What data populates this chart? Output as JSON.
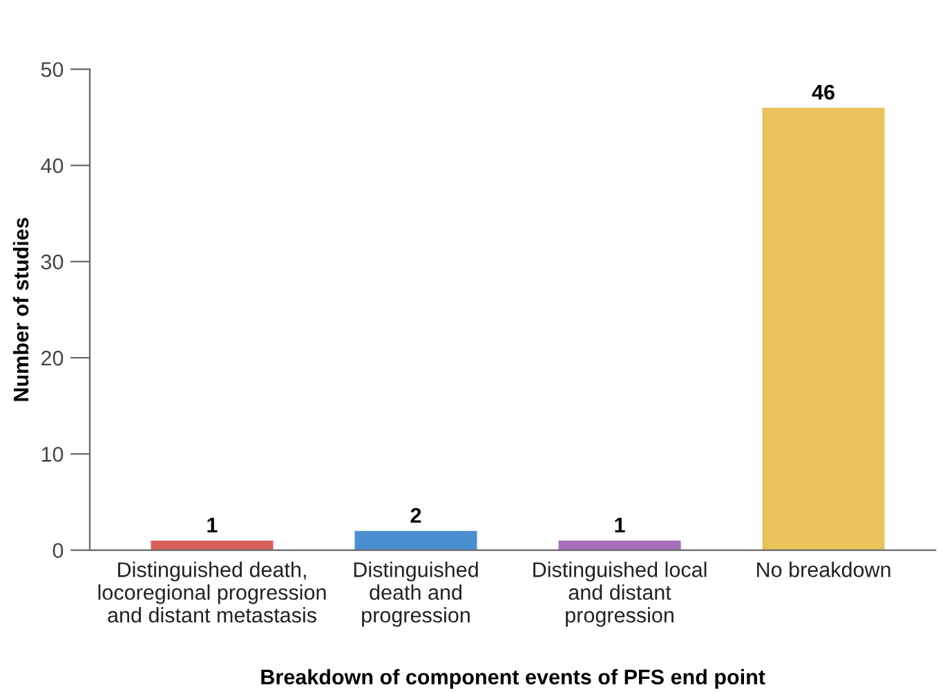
{
  "chart_data": {
    "type": "bar",
    "categories": [
      "Distinguished death,\nlocoregional progression\nand distant metastasis",
      "Distinguished\ndeath and\nprogression",
      "Distinguished local\nand distant\nprogression",
      "No breakdown"
    ],
    "values": [
      1,
      2,
      1,
      46
    ],
    "colors": [
      "#d9605a",
      "#4a90d0",
      "#a66fbb",
      "#e8c35c"
    ],
    "xlabel": "Breakdown of component events of PFS end point",
    "ylabel": "Number of studies",
    "ylim": [
      0,
      50
    ],
    "yticks": [
      0,
      10,
      20,
      30,
      40,
      50
    ],
    "data_labels": true,
    "grid": false,
    "legend": false
  }
}
